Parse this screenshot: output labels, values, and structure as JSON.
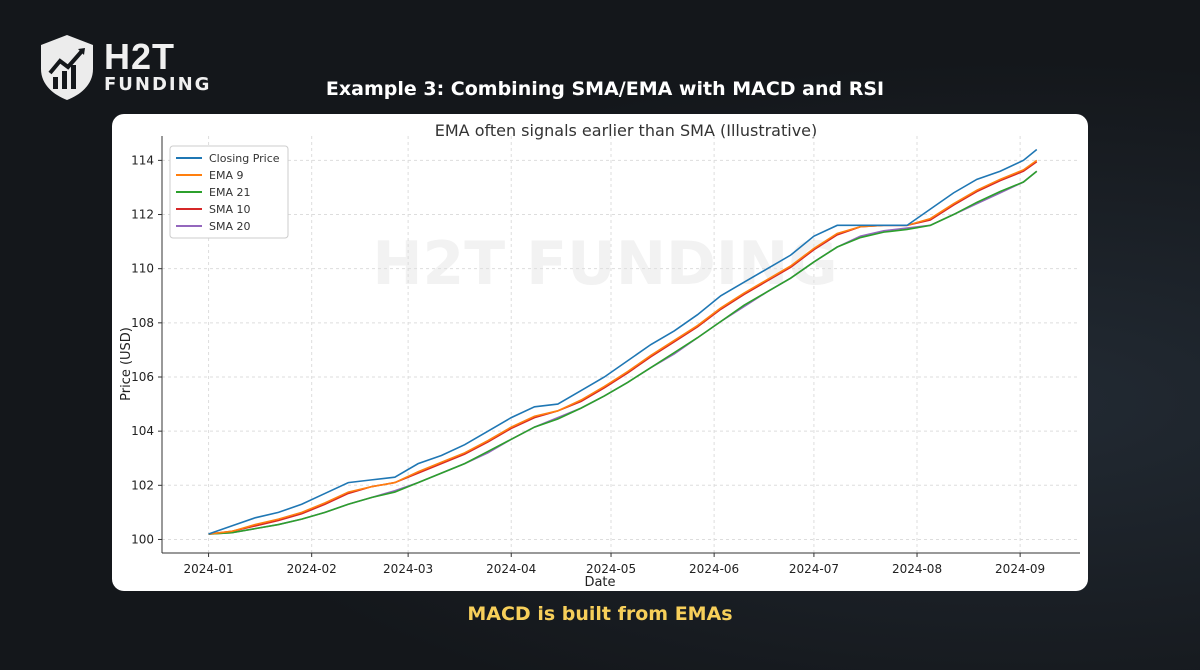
{
  "header": {
    "brand_line1": "H2T",
    "brand_line2": "FUNDING",
    "title": "Example 3: Combining SMA/EMA with MACD and RSI"
  },
  "caption": "MACD is built from EMAs",
  "watermark": "H2T FUNDING",
  "chart_data": {
    "type": "line",
    "title": "EMA often signals earlier than SMA (Illustrative)",
    "xlabel": "Date",
    "ylabel": "Price (USD)",
    "xticks": [
      "2024-01",
      "2024-02",
      "2024-03",
      "2024-04",
      "2024-05",
      "2024-06",
      "2024-07",
      "2024-08",
      "2024-09"
    ],
    "xtick_days": [
      0,
      31,
      60,
      91,
      121,
      152,
      182,
      213,
      244
    ],
    "yticks": [
      "100",
      "102",
      "104",
      "106",
      "108",
      "110",
      "112",
      "114"
    ],
    "ylim": [
      99.5,
      114.9
    ],
    "xlim_days": [
      -14,
      262
    ],
    "grid": true,
    "legend": "top-left",
    "x_days": [
      0,
      7,
      14,
      21,
      28,
      35,
      42,
      49,
      56,
      63,
      70,
      77,
      84,
      91,
      98,
      105,
      112,
      119,
      126,
      133,
      140,
      147,
      154,
      161,
      168,
      175,
      182,
      189,
      196,
      203,
      210,
      217,
      224,
      231,
      238,
      245,
      249
    ],
    "series": [
      {
        "name": "Closing Price",
        "color": "#1f77b4",
        "values": [
          100.2,
          100.5,
          100.8,
          101.0,
          101.3,
          101.7,
          102.1,
          102.2,
          102.3,
          102.8,
          103.1,
          103.5,
          104.0,
          104.5,
          104.9,
          105.0,
          105.5,
          106.0,
          106.6,
          107.2,
          107.7,
          108.3,
          109.0,
          109.5,
          110.0,
          110.5,
          111.2,
          111.6,
          111.6,
          111.6,
          111.6,
          112.2,
          112.8,
          113.3,
          113.6,
          114.0,
          114.4
        ]
      },
      {
        "name": "EMA 9",
        "color": "#ff7f0e",
        "values": [
          100.2,
          100.3,
          100.55,
          100.75,
          101.0,
          101.35,
          101.75,
          101.95,
          102.1,
          102.5,
          102.85,
          103.2,
          103.65,
          104.15,
          104.55,
          104.75,
          105.15,
          105.65,
          106.2,
          106.8,
          107.35,
          107.9,
          108.55,
          109.1,
          109.6,
          110.1,
          110.75,
          111.3,
          111.55,
          111.6,
          111.6,
          111.85,
          112.4,
          112.9,
          113.3,
          113.65,
          114.0
        ]
      },
      {
        "name": "EMA 21",
        "color": "#2ca02c",
        "values": [
          100.2,
          100.25,
          100.4,
          100.55,
          100.75,
          101.0,
          101.3,
          101.55,
          101.75,
          102.1,
          102.45,
          102.8,
          103.25,
          103.7,
          104.15,
          104.45,
          104.85,
          105.3,
          105.8,
          106.35,
          106.9,
          107.45,
          108.05,
          108.65,
          109.15,
          109.65,
          110.25,
          110.8,
          111.15,
          111.35,
          111.45,
          111.6,
          112.0,
          112.45,
          112.85,
          113.2,
          113.6
        ]
      },
      {
        "name": "SMA 10",
        "color": "#d62728",
        "values": [
          100.2,
          100.3,
          100.5,
          100.7,
          100.95,
          101.3,
          101.7,
          101.95,
          102.1,
          102.45,
          102.8,
          103.15,
          103.6,
          104.1,
          104.5,
          104.75,
          105.1,
          105.6,
          106.15,
          106.75,
          107.3,
          107.85,
          108.5,
          109.05,
          109.55,
          110.05,
          110.7,
          111.25,
          111.55,
          111.6,
          111.6,
          111.8,
          112.35,
          112.85,
          113.25,
          113.6,
          113.95
        ]
      },
      {
        "name": "SMA 20",
        "color": "#9467bd",
        "values": [
          100.2,
          100.25,
          100.4,
          100.55,
          100.75,
          101.0,
          101.3,
          101.55,
          101.8,
          102.1,
          102.45,
          102.8,
          103.2,
          103.7,
          104.15,
          104.5,
          104.85,
          105.3,
          105.8,
          106.35,
          106.85,
          107.45,
          108.05,
          108.6,
          109.15,
          109.65,
          110.25,
          110.8,
          111.2,
          111.4,
          111.5,
          111.6,
          112.0,
          112.4,
          112.8,
          113.2,
          113.6
        ]
      }
    ]
  }
}
